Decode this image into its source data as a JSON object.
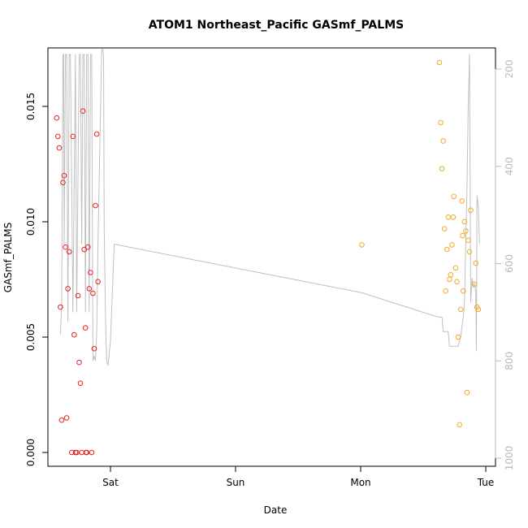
{
  "chart_data": {
    "type": "scatter",
    "title": "ATOM1 Northeast_Pacific GASmf_PALMS",
    "xlabel": "Date",
    "ylabel": "GASmf_PALMS",
    "x_axis": {
      "ticks": [
        {
          "label": "Sat",
          "day": 1.0
        },
        {
          "label": "Sun",
          "day": 2.0
        },
        {
          "label": "Mon",
          "day": 3.0
        },
        {
          "label": "Tue",
          "day": 4.0
        }
      ],
      "range_days": [
        0.55,
        4.06
      ]
    },
    "y_axis": {
      "ticks": [
        "0.000",
        "0.005",
        "0.010",
        "0.015"
      ],
      "tick_values": [
        0.0,
        0.005,
        0.01,
        0.015
      ],
      "range": [
        -0.0005,
        0.0175
      ]
    },
    "y2_axis": {
      "ticks": [
        "200",
        "400",
        "600",
        "800",
        "1000"
      ],
      "tick_values": [
        200,
        400,
        600,
        800,
        1000
      ],
      "range": [
        1020,
        170
      ],
      "color": "#b8b8b8"
    },
    "grid": false,
    "colors": {
      "series_1": "#e8231f",
      "series_2": "#f5a623",
      "altitude_trace": "#c0c0c0"
    },
    "series": [
      {
        "color": "#e8231f",
        "points": [
          [
            0.57,
            0.0145
          ],
          [
            0.58,
            0.0137
          ],
          [
            0.59,
            0.0132
          ],
          [
            0.6,
            0.0063
          ],
          [
            0.61,
            0.0014
          ],
          [
            0.62,
            0.0117
          ],
          [
            0.63,
            0.012
          ],
          [
            0.64,
            0.0089
          ],
          [
            0.65,
            0.0015
          ],
          [
            0.66,
            0.0071
          ],
          [
            0.67,
            0.0087
          ],
          [
            0.69,
            0.0
          ],
          [
            0.7,
            0.0137
          ],
          [
            0.71,
            0.0051
          ],
          [
            0.72,
            0.0
          ],
          [
            0.73,
            0.0
          ],
          [
            0.74,
            0.0068
          ],
          [
            0.75,
            0.0039
          ],
          [
            0.76,
            0.003
          ],
          [
            0.77,
            0.0
          ],
          [
            0.78,
            0.0148
          ],
          [
            0.79,
            0.0088
          ],
          [
            0.8,
            0.0054
          ],
          [
            0.805,
            0.0
          ],
          [
            0.81,
            0.0
          ],
          [
            0.82,
            0.0089
          ],
          [
            0.83,
            0.0071
          ],
          [
            0.84,
            0.0078
          ],
          [
            0.85,
            0.0
          ],
          [
            0.86,
            0.0069
          ],
          [
            0.87,
            0.0045
          ],
          [
            0.88,
            0.0107
          ],
          [
            0.89,
            0.0138
          ],
          [
            0.9,
            0.0074
          ]
        ]
      },
      {
        "color": "#f5a623",
        "points": [
          [
            3.01,
            0.009
          ],
          [
            3.63,
            0.0169
          ],
          [
            3.64,
            0.0143
          ],
          [
            3.65,
            0.0123
          ],
          [
            3.66,
            0.0135
          ],
          [
            3.67,
            0.0097
          ],
          [
            3.68,
            0.007
          ],
          [
            3.69,
            0.0088
          ],
          [
            3.7,
            0.0102
          ],
          [
            3.71,
            0.0075
          ],
          [
            3.72,
            0.0077
          ],
          [
            3.73,
            0.009
          ],
          [
            3.74,
            0.0102
          ],
          [
            3.745,
            0.0111
          ],
          [
            3.76,
            0.008
          ],
          [
            3.77,
            0.0074
          ],
          [
            3.78,
            0.005
          ],
          [
            3.79,
            0.0012
          ],
          [
            3.8,
            0.0062
          ],
          [
            3.81,
            0.0109
          ],
          [
            3.815,
            0.0094
          ],
          [
            3.82,
            0.007
          ],
          [
            3.83,
            0.01
          ],
          [
            3.84,
            0.0096
          ],
          [
            3.85,
            0.0026
          ],
          [
            3.86,
            0.0092
          ],
          [
            3.87,
            0.0087
          ],
          [
            3.88,
            0.0105
          ],
          [
            3.91,
            0.0073
          ],
          [
            3.92,
            0.0082
          ],
          [
            3.93,
            0.0063
          ],
          [
            3.94,
            0.0062
          ]
        ]
      }
    ],
    "altitude_trace": [
      [
        0.6,
        745
      ],
      [
        0.61,
        690
      ],
      [
        0.62,
        170
      ],
      [
        0.625,
        170
      ],
      [
        0.63,
        560
      ],
      [
        0.64,
        170
      ],
      [
        0.65,
        170
      ],
      [
        0.66,
        720
      ],
      [
        0.67,
        170
      ],
      [
        0.68,
        170
      ],
      [
        0.7,
        700
      ],
      [
        0.72,
        170
      ],
      [
        0.73,
        700
      ],
      [
        0.75,
        170
      ],
      [
        0.76,
        170
      ],
      [
        0.77,
        560
      ],
      [
        0.78,
        170
      ],
      [
        0.79,
        170
      ],
      [
        0.8,
        700
      ],
      [
        0.81,
        170
      ],
      [
        0.82,
        170
      ],
      [
        0.83,
        700
      ],
      [
        0.84,
        170
      ],
      [
        0.85,
        170
      ],
      [
        0.86,
        800
      ],
      [
        0.87,
        790
      ],
      [
        0.88,
        800
      ],
      [
        0.89,
        740
      ],
      [
        0.9,
        560
      ],
      [
        0.93,
        160
      ],
      [
        0.94,
        160
      ],
      [
        0.945,
        180
      ],
      [
        0.95,
        530
      ],
      [
        0.96,
        700
      ],
      [
        0.965,
        760
      ],
      [
        0.97,
        800
      ],
      [
        0.98,
        810
      ],
      [
        1.0,
        760
      ],
      [
        1.03,
        560
      ],
      [
        1.03,
        560
      ],
      [
        3.01,
        660
      ],
      [
        3.01,
        660
      ],
      [
        3.01,
        660
      ],
      [
        3.62,
        710
      ],
      [
        3.65,
        710
      ],
      [
        3.66,
        740
      ],
      [
        3.7,
        740
      ],
      [
        3.71,
        770
      ],
      [
        3.78,
        770
      ],
      [
        3.8,
        750
      ],
      [
        3.82,
        710
      ],
      [
        3.83,
        680
      ],
      [
        3.85,
        440
      ],
      [
        3.86,
        280
      ],
      [
        3.87,
        170
      ],
      [
        3.88,
        680
      ],
      [
        3.89,
        630
      ],
      [
        3.9,
        650
      ],
      [
        3.91,
        640
      ],
      [
        3.92,
        660
      ],
      [
        3.925,
        780
      ],
      [
        3.93,
        460
      ],
      [
        3.94,
        480
      ],
      [
        3.95,
        560
      ]
    ]
  }
}
